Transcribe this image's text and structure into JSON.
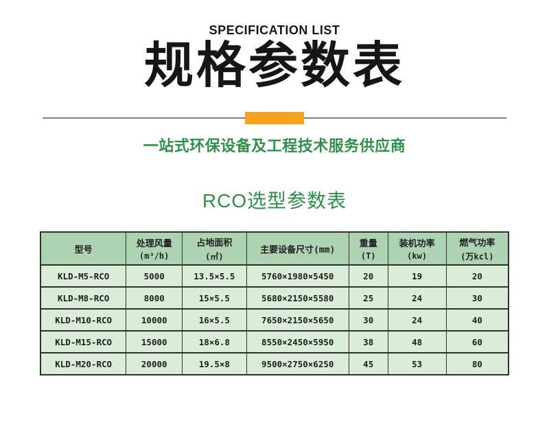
{
  "header": {
    "eyebrow": "SPECIFICATION LIST",
    "title": "规格参数表",
    "subtitle": "一站式环保设备及工程技术服务供应商"
  },
  "section": {
    "title": "RCO选型参数表"
  },
  "colors": {
    "accent-orange": "#F6A21E",
    "brand-green": "#2E9148",
    "table-header-bg": "#AED3B3",
    "table-row-bg": "#DAEDD7",
    "table-border": "#2F2F2F",
    "divider-gray": "#7D7D7D",
    "title-black": "#161616"
  },
  "table": {
    "columns": [
      {
        "label": "型号",
        "unit": ""
      },
      {
        "label": "处理风量",
        "unit": "(m³/h)"
      },
      {
        "label": "占地面积",
        "unit": "(㎡)"
      },
      {
        "label": "主要设备尺寸(mm)",
        "unit": ""
      },
      {
        "label": "重量",
        "unit": "(T)"
      },
      {
        "label": "装机功率",
        "unit": "(kw)"
      },
      {
        "label": "燃气功率",
        "unit": "(万kcl)"
      }
    ],
    "rows": [
      [
        "KLD-M5-RCO",
        "5000",
        "13.5×5.5",
        "5760×1980×5450",
        "20",
        "19",
        "20"
      ],
      [
        "KLD-M8-RCO",
        "8000",
        "15×5.5",
        "5680×2150×5580",
        "25",
        "24",
        "30"
      ],
      [
        "KLD-M10-RCO",
        "10000",
        "16×5.5",
        "7650×2150×5650",
        "30",
        "24",
        "40"
      ],
      [
        "KLD-M15-RCO",
        "15000",
        "18×6.8",
        "8550×2450×5950",
        "38",
        "48",
        "60"
      ],
      [
        "KLD-M20-RCO",
        "20000",
        "19.5×8",
        "9500×2750×6250",
        "45",
        "53",
        "80"
      ]
    ]
  }
}
